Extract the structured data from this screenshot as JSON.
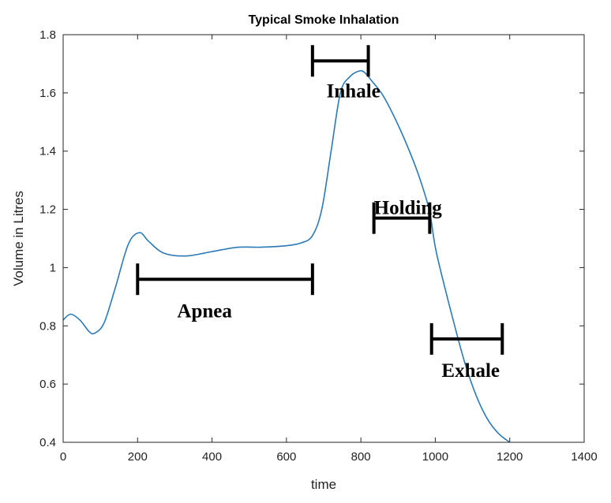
{
  "chart_data": {
    "type": "line",
    "title": "Typical Smoke Inhalation",
    "xlabel": "time",
    "ylabel": "Volume in Litres",
    "xlim": [
      0,
      1400
    ],
    "ylim": [
      0.4,
      1.8
    ],
    "xticks": [
      0,
      200,
      400,
      600,
      800,
      1000,
      1200,
      1400
    ],
    "xtick_labels": [
      "0",
      "200",
      "400",
      "600",
      "800",
      "1000",
      "1200",
      "1400"
    ],
    "yticks": [
      0.4,
      0.6,
      0.8,
      1.0,
      1.2,
      1.4,
      1.6,
      1.8
    ],
    "ytick_labels": [
      "0.4",
      "0.6",
      "0.8",
      "1",
      "1.2",
      "1.4",
      "1.6",
      "1.8"
    ],
    "grid": false,
    "series": [
      {
        "name": "volume",
        "color": "#2a7ab8",
        "x": [
          0,
          20,
          45,
          70,
          85,
          110,
          140,
          175,
          205,
          230,
          270,
          330,
          400,
          470,
          530,
          600,
          640,
          670,
          695,
          720,
          745,
          770,
          795,
          810,
          830,
          860,
          900,
          940,
          965,
          985,
          1000,
          1020,
          1050,
          1080,
          1110,
          1140,
          1170,
          1200
        ],
        "y": [
          0.82,
          0.84,
          0.82,
          0.78,
          0.775,
          0.81,
          0.93,
          1.08,
          1.12,
          1.09,
          1.05,
          1.04,
          1.055,
          1.07,
          1.07,
          1.075,
          1.085,
          1.11,
          1.2,
          1.4,
          1.6,
          1.655,
          1.675,
          1.67,
          1.64,
          1.59,
          1.49,
          1.37,
          1.28,
          1.19,
          1.07,
          0.96,
          0.81,
          0.67,
          0.56,
          0.48,
          0.43,
          0.4
        ]
      }
    ],
    "annotations": [
      {
        "label": "Inhale",
        "x_start": 670,
        "x_end": 820,
        "y": 1.71,
        "label_x": 780,
        "label_y": 1.6,
        "label_anchor": "middle"
      },
      {
        "label": "Holding",
        "x_start": 835,
        "x_end": 985,
        "y": 1.17,
        "label_x": 835,
        "label_y": 1.2,
        "label_anchor": "start"
      },
      {
        "label": "Apnea",
        "x_start": 200,
        "x_end": 670,
        "y": 0.96,
        "label_x": 380,
        "label_y": 0.845,
        "label_anchor": "middle"
      },
      {
        "label": "Exhale",
        "x_start": 990,
        "x_end": 1180,
        "y": 0.755,
        "label_x": 1095,
        "label_y": 0.64,
        "label_anchor": "middle"
      }
    ]
  }
}
